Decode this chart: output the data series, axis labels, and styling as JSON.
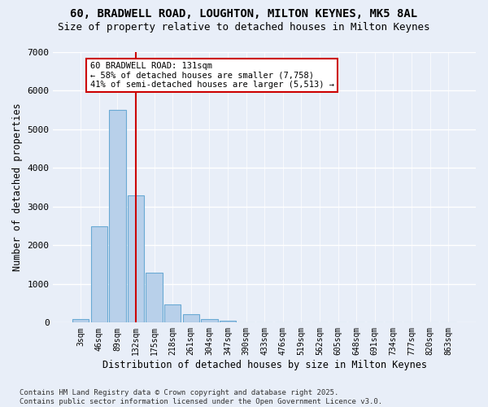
{
  "title_line1": "60, BRADWELL ROAD, LOUGHTON, MILTON KEYNES, MK5 8AL",
  "title_line2": "Size of property relative to detached houses in Milton Keynes",
  "xlabel": "Distribution of detached houses by size in Milton Keynes",
  "ylabel": "Number of detached properties",
  "bar_values": [
    100,
    2500,
    5500,
    3300,
    1300,
    480,
    220,
    90,
    50,
    0,
    0,
    0,
    0,
    0,
    0,
    0,
    0,
    0,
    0,
    0,
    0
  ],
  "categories": [
    "3sqm",
    "46sqm",
    "89sqm",
    "132sqm",
    "175sqm",
    "218sqm",
    "261sqm",
    "304sqm",
    "347sqm",
    "390sqm",
    "433sqm",
    "476sqm",
    "519sqm",
    "562sqm",
    "605sqm",
    "648sqm",
    "691sqm",
    "734sqm",
    "777sqm",
    "820sqm",
    "863sqm"
  ],
  "bar_color": "#b8d0ea",
  "bar_edge_color": "#6aaad4",
  "background_color": "#e8eef8",
  "grid_color": "#ffffff",
  "vline_x": 3,
  "vline_color": "#cc0000",
  "annotation_text": "60 BRADWELL ROAD: 131sqm\n← 58% of detached houses are smaller (7,758)\n41% of semi-detached houses are larger (5,513) →",
  "annotation_box_color": "#ffffff",
  "annotation_box_edge": "#cc0000",
  "ylim": [
    0,
    7000
  ],
  "yticks": [
    0,
    1000,
    2000,
    3000,
    4000,
    5000,
    6000,
    7000
  ],
  "footer_text": "Contains HM Land Registry data © Crown copyright and database right 2025.\nContains public sector information licensed under the Open Government Licence v3.0.",
  "title_fontsize": 10,
  "label_fontsize": 8.5,
  "tick_fontsize": 8,
  "footer_fontsize": 6.5
}
